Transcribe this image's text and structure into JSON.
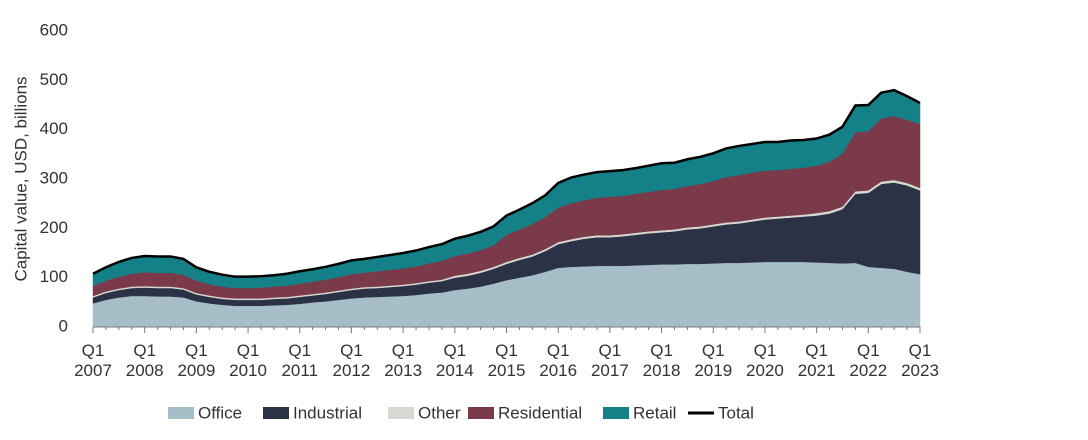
{
  "chart_data": {
    "type": "stacked_area",
    "y_label": "Capital value, USD, billions",
    "categories": [
      "Q1 2007",
      null,
      null,
      null,
      "Q1 2008",
      null,
      null,
      null,
      "Q1 2009",
      null,
      null,
      null,
      "Q1 2010",
      null,
      null,
      null,
      "Q1 2011",
      null,
      null,
      null,
      "Q1 2012",
      null,
      null,
      null,
      "Q1 2013",
      null,
      null,
      null,
      "Q1 2014",
      null,
      null,
      null,
      "Q1 2015",
      null,
      null,
      null,
      "Q1 2016",
      null,
      null,
      null,
      "Q1 2017",
      null,
      null,
      null,
      "Q1 2018",
      null,
      null,
      null,
      "Q1 2019",
      null,
      null,
      null,
      "Q1 2020",
      null,
      null,
      null,
      "Q1 2021",
      null,
      null,
      null,
      "Q1 2022",
      null,
      null,
      null,
      "Q1 2023"
    ],
    "ylim": [
      0,
      600
    ],
    "yticks": [
      0,
      100,
      200,
      300,
      400,
      500,
      600
    ],
    "series": [
      {
        "name": "Office",
        "color": "#a7bdc8",
        "values": [
          48,
          55,
          60,
          63,
          63,
          62,
          62,
          60,
          52,
          48,
          45,
          43,
          43,
          43,
          44,
          45,
          47,
          50,
          52,
          55,
          58,
          60,
          61,
          62,
          63,
          65,
          68,
          70,
          75,
          78,
          82,
          88,
          95,
          100,
          105,
          112,
          120,
          122,
          123,
          124,
          124,
          124,
          125,
          126,
          127,
          127,
          128,
          128,
          129,
          130,
          130,
          131,
          132,
          132,
          132,
          132,
          131,
          130,
          129,
          130,
          122,
          120,
          118,
          112,
          107
        ]
      },
      {
        "name": "Industrial",
        "color": "#2b3245",
        "values": [
          12,
          14,
          15,
          16,
          17,
          17,
          17,
          16,
          14,
          13,
          12,
          12,
          12,
          12,
          13,
          13,
          14,
          14,
          15,
          16,
          17,
          18,
          18,
          19,
          20,
          21,
          22,
          23,
          25,
          26,
          28,
          30,
          33,
          36,
          38,
          42,
          48,
          52,
          56,
          58,
          58,
          60,
          62,
          64,
          65,
          67,
          70,
          72,
          75,
          78,
          80,
          83,
          86,
          88,
          90,
          92,
          95,
          100,
          110,
          140,
          150,
          170,
          175,
          175,
          170
        ]
      },
      {
        "name": "Other",
        "color": "#d8d9d1",
        "values": [
          3,
          3,
          3,
          3,
          3,
          3,
          3,
          3,
          3,
          3,
          3,
          3,
          3,
          3,
          3,
          3,
          3,
          3,
          3,
          3,
          3,
          3,
          3,
          3,
          3,
          3,
          3,
          3,
          4,
          4,
          4,
          4,
          4,
          4,
          4,
          4,
          4,
          4,
          4,
          4,
          4,
          4,
          4,
          4,
          4,
          4,
          4,
          4,
          4,
          4,
          4,
          4,
          4,
          4,
          4,
          4,
          5,
          5,
          5,
          5,
          5,
          5,
          5,
          5,
          5
        ]
      },
      {
        "name": "Residential",
        "color": "#7a3a4a",
        "values": [
          20,
          22,
          24,
          26,
          28,
          28,
          28,
          27,
          25,
          23,
          22,
          21,
          21,
          22,
          22,
          23,
          24,
          25,
          26,
          27,
          29,
          29,
          31,
          32,
          33,
          34,
          36,
          38,
          40,
          41,
          42,
          44,
          55,
          58,
          62,
          65,
          70,
          73,
          74,
          76,
          78,
          78,
          79,
          80,
          82,
          82,
          84,
          86,
          88,
          92,
          94,
          95,
          95,
          94,
          95,
          95,
          96,
          100,
          108,
          120,
          120,
          128,
          130,
          128,
          130
        ]
      },
      {
        "name": "Retail",
        "color": "#148087",
        "values": [
          25,
          27,
          30,
          32,
          33,
          33,
          33,
          32,
          27,
          25,
          24,
          23,
          23,
          23,
          23,
          24,
          25,
          25,
          26,
          27,
          28,
          28,
          29,
          30,
          31,
          32,
          33,
          34,
          35,
          36,
          37,
          38,
          39,
          40,
          42,
          44,
          50,
          52,
          52,
          52,
          52,
          52,
          52,
          53,
          54,
          53,
          54,
          55,
          56,
          58,
          59,
          58,
          58,
          57,
          57,
          56,
          55,
          55,
          54,
          54,
          53,
          52,
          52,
          48,
          42
        ]
      },
      {
        "name": "Total",
        "color": "#000000",
        "line": true,
        "values": [
          108,
          121,
          132,
          140,
          144,
          143,
          143,
          138,
          121,
          112,
          106,
          102,
          102,
          103,
          105,
          108,
          113,
          117,
          122,
          128,
          135,
          138,
          142,
          146,
          150,
          155,
          162,
          168,
          179,
          185,
          193,
          204,
          226,
          238,
          251,
          267,
          292,
          303,
          309,
          314,
          316,
          318,
          322,
          327,
          332,
          333,
          340,
          345,
          352,
          362,
          367,
          371,
          375,
          375,
          378,
          379,
          382,
          390,
          406,
          449,
          450,
          475,
          480,
          468,
          454
        ]
      }
    ]
  }
}
